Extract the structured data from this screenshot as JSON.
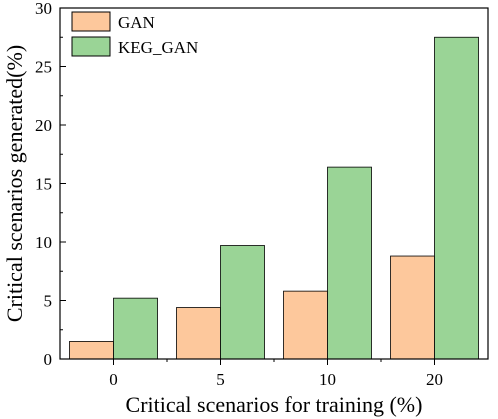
{
  "chart_data": {
    "type": "bar",
    "title": "",
    "xlabel": "Critical scenarios for training (%)",
    "ylabel": "Critical scenarios generated(%)",
    "categories": [
      "0",
      "5",
      "10",
      "20"
    ],
    "ylim": [
      0,
      30
    ],
    "yticks": [
      "0",
      "5",
      "10",
      "15",
      "20",
      "25",
      "30"
    ],
    "series": [
      {
        "name": "GAN",
        "values": [
          1.5,
          4.4,
          5.8,
          8.8
        ],
        "color": "#FDC89C"
      },
      {
        "name": "KEG_GAN",
        "values": [
          5.2,
          9.7,
          16.4,
          27.5
        ],
        "color": "#9AD496"
      }
    ],
    "legend_position": "top-left",
    "grid": false
  }
}
